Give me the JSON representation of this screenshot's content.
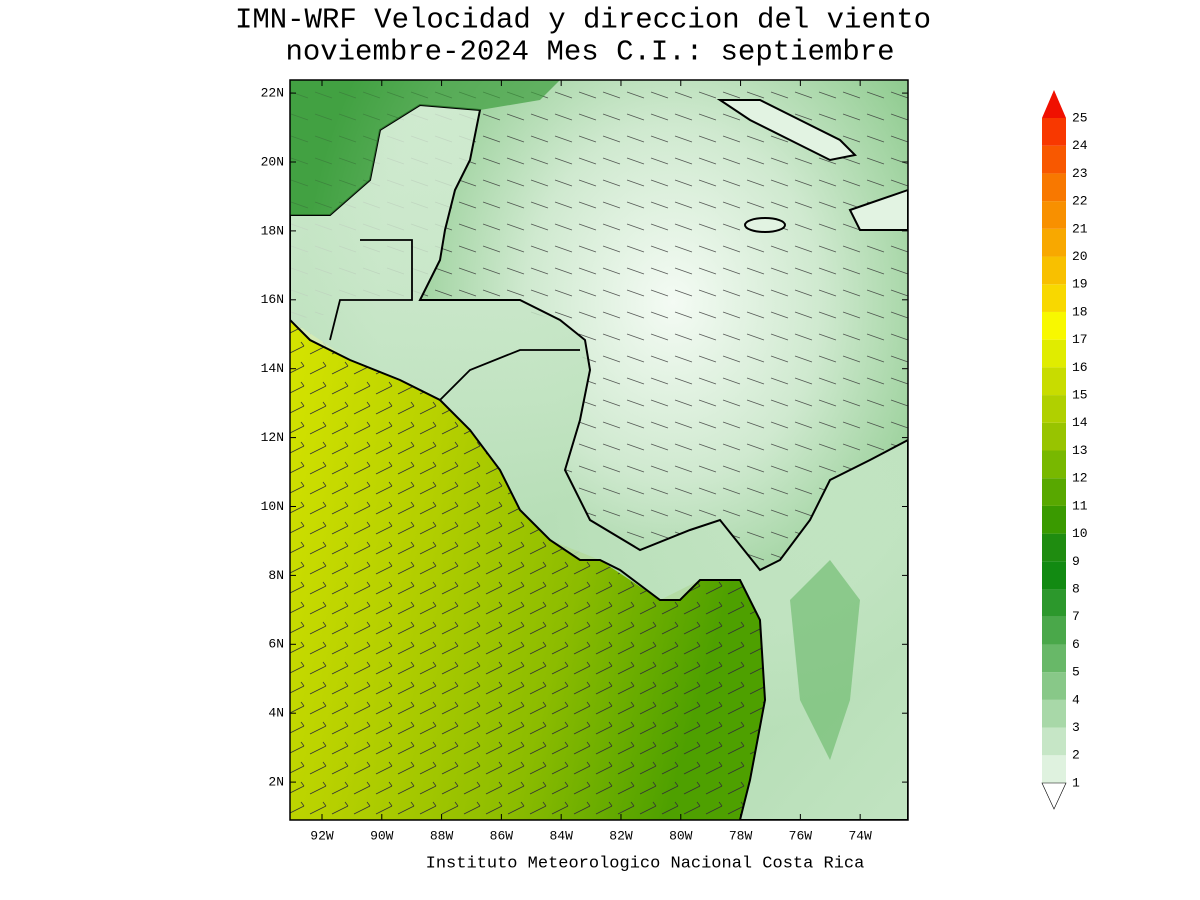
{
  "title": [
    "IMN-WRF Velocidad y direccion del viento",
    "noviembre-2024 Mes C.I.: septiembre"
  ],
  "map": {
    "xlim": [
      -93.07,
      -72.4
    ],
    "ylim": [
      0.9,
      22.38
    ],
    "xticks": [
      {
        "value": -92,
        "label": "92W"
      },
      {
        "value": -90,
        "label": "90W"
      },
      {
        "value": -88,
        "label": "88W"
      },
      {
        "value": -86,
        "label": "86W"
      },
      {
        "value": -84,
        "label": "84W"
      },
      {
        "value": -82,
        "label": "82W"
      },
      {
        "value": -80,
        "label": "80W"
      },
      {
        "value": -78,
        "label": "78W"
      },
      {
        "value": -76,
        "label": "76W"
      },
      {
        "value": -74,
        "label": "74W"
      }
    ],
    "yticks": [
      {
        "value": 2,
        "label": "2N"
      },
      {
        "value": 4,
        "label": "4N"
      },
      {
        "value": 6,
        "label": "6N"
      },
      {
        "value": 8,
        "label": "8N"
      },
      {
        "value": 10,
        "label": "10N"
      },
      {
        "value": 12,
        "label": "12N"
      },
      {
        "value": 14,
        "label": "14N"
      },
      {
        "value": 16,
        "label": "16N"
      },
      {
        "value": 18,
        "label": "18N"
      },
      {
        "value": 20,
        "label": "20N"
      },
      {
        "value": 22,
        "label": "22N"
      }
    ]
  },
  "colorbar": {
    "levels": [
      1,
      2,
      3,
      4,
      5,
      6,
      7,
      8,
      9,
      10,
      11,
      12,
      13,
      14,
      15,
      16,
      17,
      18,
      19,
      20,
      21,
      22,
      23,
      24,
      25
    ],
    "colors": [
      "#dff2df",
      "#c6e6c6",
      "#a8d8a8",
      "#88c888",
      "#68b868",
      "#4aa84a",
      "#2c982c",
      "#128a12",
      "#1f8c10",
      "#3a9a00",
      "#58a800",
      "#78b800",
      "#98c400",
      "#b0d000",
      "#c8dc00",
      "#e0ec00",
      "#f8f800",
      "#f8d800",
      "#f8c000",
      "#f8a800",
      "#f89000",
      "#f87800",
      "#f85800",
      "#f83800",
      "#f01000"
    ]
  },
  "footer": "Instituto Meteorologico Nacional Costa Rica"
}
